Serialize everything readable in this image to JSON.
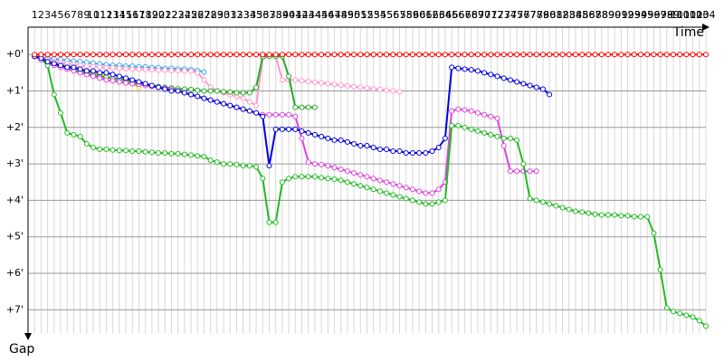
{
  "chart_data": {
    "type": "line",
    "xlabel": "Time",
    "ylabel": "Gap",
    "grid": true,
    "xlim": [
      0,
      104
    ],
    "ylim": [
      -0.75,
      7.75
    ],
    "yticks": [
      {
        "value": 0,
        "label": "+0'"
      },
      {
        "value": 1,
        "label": "+1'"
      },
      {
        "value": 2,
        "label": "+2'"
      },
      {
        "value": 3,
        "label": "+3'"
      },
      {
        "value": 4,
        "label": "+4'"
      },
      {
        "value": 5,
        "label": "+5'"
      },
      {
        "value": 6,
        "label": "+6'"
      },
      {
        "value": 7,
        "label": "+7'"
      }
    ],
    "x": [
      1,
      2,
      3,
      4,
      5,
      6,
      7,
      8,
      9,
      10,
      11,
      12,
      13,
      14,
      15,
      16,
      17,
      18,
      19,
      20,
      21,
      22,
      23,
      24,
      25,
      26,
      27,
      28,
      29,
      30,
      31,
      32,
      33,
      34,
      35,
      36,
      37,
      38,
      39,
      40,
      41,
      42,
      43,
      44,
      45,
      46,
      47,
      48,
      49,
      50,
      51,
      52,
      53,
      54,
      55,
      56,
      57,
      58,
      59,
      60,
      61,
      62,
      63,
      64,
      65,
      66,
      67,
      68,
      69,
      70,
      71,
      72,
      73,
      74,
      75,
      76,
      77,
      78,
      79,
      80,
      81,
      82,
      83,
      84,
      85,
      86,
      87,
      88,
      89,
      90,
      91,
      92,
      93,
      94,
      95,
      96,
      97,
      98,
      99,
      100,
      101,
      102,
      103,
      104
    ],
    "series": [
      {
        "color": "#33aaee",
        "values": [
          0.05,
          0.08,
          0.1,
          0.12,
          0.14,
          0.16,
          0.18,
          0.2,
          0.22,
          0.24,
          0.26,
          0.28,
          0.3,
          0.3,
          0.32,
          0.32,
          0.34,
          0.34,
          0.36,
          0.36,
          0.38,
          0.38,
          0.4,
          0.4,
          0.42,
          0.44,
          0.48,
          null,
          null,
          null,
          null,
          null,
          null,
          null,
          null,
          null,
          null,
          null,
          null,
          null,
          null,
          null,
          null,
          null,
          null,
          null,
          null,
          null,
          null,
          null,
          null,
          null,
          null,
          null,
          null,
          null,
          null,
          null,
          null,
          null,
          null,
          null,
          null,
          null,
          null,
          null,
          null,
          null,
          null,
          null,
          null,
          null,
          null,
          null,
          null,
          null,
          null,
          null,
          null,
          null,
          null,
          null,
          null,
          null,
          null,
          null,
          null,
          null,
          null,
          null,
          null,
          null,
          null,
          null,
          null,
          null,
          null,
          null,
          null,
          null,
          null,
          null,
          null,
          null
        ]
      },
      {
        "color": "#dddd00",
        "values": [
          0.05,
          0.1,
          0.15,
          0.2,
          0.25,
          0.3,
          0.35,
          0.4,
          0.45,
          0.5,
          0.55,
          0.6,
          0.65,
          0.7,
          0.75,
          0.8,
          0.9,
          null,
          null,
          null,
          null,
          null,
          null,
          null,
          null,
          null,
          null,
          null,
          null,
          null,
          null,
          null,
          null,
          null,
          null,
          null,
          null,
          null,
          null,
          null,
          null,
          null,
          null,
          null,
          null,
          null,
          null,
          null,
          null,
          null,
          null,
          null,
          null,
          null,
          null,
          null,
          null,
          null,
          null,
          null,
          null,
          null,
          null,
          null,
          null,
          null,
          null,
          null,
          null,
          null,
          null,
          null,
          null,
          null,
          null,
          null,
          null,
          null,
          null,
          null,
          null,
          null,
          null,
          null,
          null,
          null,
          null,
          null,
          null,
          null,
          null,
          null,
          null,
          null,
          null,
          null,
          null,
          null,
          null,
          null,
          null,
          null,
          null,
          null
        ]
      },
      {
        "color": "#ff99cc",
        "values": [
          0.05,
          0.1,
          0.15,
          0.2,
          0.22,
          0.25,
          0.27,
          0.3,
          0.32,
          0.33,
          0.35,
          0.36,
          0.37,
          0.38,
          0.39,
          0.4,
          0.4,
          0.41,
          0.42,
          0.43,
          0.43,
          0.44,
          0.45,
          0.45,
          0.45,
          0.5,
          0.7,
          0.9,
          1.0,
          1.05,
          1.1,
          1.15,
          1.2,
          1.3,
          1.4,
          0.1,
          0.05,
          0.05,
          0.7,
          0.7,
          0.7,
          0.72,
          0.74,
          0.76,
          0.78,
          0.8,
          0.82,
          0.84,
          0.86,
          0.88,
          0.9,
          0.92,
          0.94,
          0.96,
          0.98,
          1.0,
          1.02,
          null,
          null,
          null,
          null,
          null,
          null,
          null,
          null,
          null,
          null,
          null,
          null,
          null,
          null,
          null,
          null,
          null,
          null,
          null,
          null,
          null,
          null,
          null,
          null,
          null,
          null,
          null,
          null,
          null,
          null,
          null,
          null,
          null,
          null,
          null,
          null,
          null,
          null,
          null,
          null,
          null,
          null,
          null,
          null,
          null,
          null,
          null
        ]
      },
      {
        "color": "#22aa22",
        "values": [
          0.05,
          0.1,
          0.2,
          0.25,
          0.3,
          0.35,
          0.4,
          0.45,
          0.5,
          0.55,
          0.6,
          0.62,
          0.65,
          0.68,
          0.7,
          0.75,
          0.8,
          0.82,
          0.85,
          0.88,
          0.9,
          0.92,
          0.94,
          0.95,
          0.96,
          0.98,
          1.0,
          1.0,
          1.0,
          1.02,
          1.03,
          1.05,
          1.05,
          1.05,
          0.9,
          0.05,
          0.05,
          0.05,
          0.05,
          0.6,
          1.45,
          1.45,
          1.45,
          1.45,
          null,
          null,
          null,
          null,
          null,
          null,
          null,
          null,
          null,
          null,
          null,
          null,
          null,
          null,
          null,
          null,
          null,
          null,
          null,
          null,
          null,
          null,
          null,
          null,
          null,
          null,
          null,
          null,
          null,
          null,
          null,
          null,
          null,
          null,
          null,
          null,
          null,
          null,
          null,
          null,
          null,
          null,
          null,
          null,
          null,
          null,
          null,
          null,
          null,
          null,
          null,
          null,
          null,
          null,
          null,
          null,
          null,
          null,
          null,
          null
        ]
      },
      {
        "color": "#dd44dd",
        "values": [
          0.05,
          0.15,
          0.25,
          0.3,
          0.35,
          0.4,
          0.45,
          0.5,
          0.55,
          0.6,
          0.65,
          0.7,
          0.72,
          0.75,
          0.78,
          0.8,
          0.82,
          0.85,
          0.88,
          0.9,
          0.92,
          0.95,
          1.0,
          1.05,
          1.1,
          1.15,
          1.2,
          1.25,
          1.3,
          1.35,
          1.4,
          1.45,
          1.5,
          1.55,
          1.6,
          1.65,
          1.65,
          1.65,
          1.65,
          1.65,
          1.7,
          2.3,
          2.95,
          3.0,
          3.02,
          3.05,
          3.1,
          3.15,
          3.2,
          3.25,
          3.3,
          3.35,
          3.4,
          3.45,
          3.5,
          3.55,
          3.6,
          3.65,
          3.7,
          3.75,
          3.8,
          3.8,
          3.7,
          3.5,
          1.55,
          1.5,
          1.52,
          1.55,
          1.6,
          1.65,
          1.7,
          1.75,
          2.5,
          3.2,
          3.2,
          3.2,
          3.2,
          3.2,
          null,
          null,
          null,
          null,
          null,
          null,
          null,
          null,
          null,
          null,
          null,
          null,
          null,
          null,
          null,
          null,
          null,
          null,
          null,
          null,
          null,
          null,
          null,
          null,
          null,
          null
        ]
      },
      {
        "color": "#22bb22",
        "values": [
          0.05,
          0.1,
          0.3,
          1.1,
          1.6,
          2.15,
          2.2,
          2.25,
          2.45,
          2.55,
          2.6,
          2.6,
          2.62,
          2.63,
          2.63,
          2.65,
          2.65,
          2.67,
          2.68,
          2.7,
          2.7,
          2.72,
          2.72,
          2.74,
          2.76,
          2.78,
          2.8,
          2.9,
          2.95,
          3.0,
          3.0,
          3.02,
          3.05,
          3.05,
          3.08,
          3.4,
          4.6,
          4.6,
          3.5,
          3.4,
          3.35,
          3.35,
          3.35,
          3.35,
          3.38,
          3.4,
          3.42,
          3.45,
          3.5,
          3.55,
          3.6,
          3.65,
          3.7,
          3.75,
          3.8,
          3.85,
          3.9,
          3.95,
          4.0,
          4.05,
          4.1,
          4.1,
          4.05,
          4.0,
          1.95,
          1.95,
          2.0,
          2.05,
          2.1,
          2.15,
          2.2,
          2.25,
          2.3,
          2.3,
          2.35,
          3.0,
          3.95,
          4.0,
          4.05,
          4.1,
          4.15,
          4.2,
          4.25,
          4.3,
          4.32,
          4.35,
          4.38,
          4.4,
          4.4,
          4.4,
          4.42,
          4.42,
          4.45,
          4.45,
          4.45,
          4.9,
          5.9,
          6.95,
          7.05,
          7.1,
          7.15,
          7.2,
          7.3,
          7.45
        ]
      },
      {
        "color": "#0000dd",
        "values": [
          0.05,
          0.1,
          0.2,
          0.25,
          0.3,
          0.35,
          0.35,
          0.4,
          0.45,
          0.45,
          0.5,
          0.5,
          0.55,
          0.6,
          0.65,
          0.7,
          0.75,
          0.8,
          0.85,
          0.9,
          0.95,
          1.0,
          1.0,
          1.05,
          1.1,
          1.15,
          1.2,
          1.25,
          1.3,
          1.35,
          1.4,
          1.45,
          1.5,
          1.55,
          1.6,
          1.7,
          3.05,
          2.05,
          2.05,
          2.05,
          2.05,
          2.1,
          2.15,
          2.2,
          2.25,
          2.3,
          2.35,
          2.35,
          2.4,
          2.45,
          2.5,
          2.5,
          2.55,
          2.6,
          2.6,
          2.65,
          2.65,
          2.7,
          2.7,
          2.7,
          2.7,
          2.65,
          2.55,
          2.3,
          0.35,
          0.38,
          0.4,
          0.42,
          0.45,
          0.5,
          0.55,
          0.6,
          0.65,
          0.7,
          0.75,
          0.8,
          0.85,
          0.9,
          0.95,
          1.1,
          null,
          null,
          null,
          null,
          null,
          null,
          null,
          null,
          null,
          null,
          null,
          null,
          null,
          null,
          null,
          null,
          null,
          null,
          null,
          null,
          null,
          null,
          null,
          null
        ]
      },
      {
        "color": "#ff0000",
        "values": [
          0,
          0,
          0,
          0,
          0,
          0,
          0,
          0,
          0,
          0,
          0,
          0,
          0,
          0,
          0,
          0,
          0,
          0,
          0,
          0,
          0,
          0,
          0,
          0,
          0,
          0,
          0,
          0,
          0,
          0,
          0,
          0,
          0,
          0,
          0,
          0,
          0,
          0,
          0,
          0,
          0,
          0,
          0,
          0,
          0,
          0,
          0,
          0,
          0,
          0,
          0,
          0,
          0,
          0,
          0,
          0,
          0,
          0,
          0,
          0,
          0,
          0,
          0,
          0,
          0,
          0,
          0,
          0,
          0,
          0,
          0,
          0,
          0,
          0,
          0,
          0,
          0,
          0,
          0,
          0,
          0,
          0,
          0,
          0,
          0,
          0,
          0,
          0,
          0,
          0,
          0,
          0,
          0,
          0,
          0,
          0,
          0,
          0,
          0,
          0,
          0,
          0,
          0,
          0
        ]
      }
    ]
  }
}
